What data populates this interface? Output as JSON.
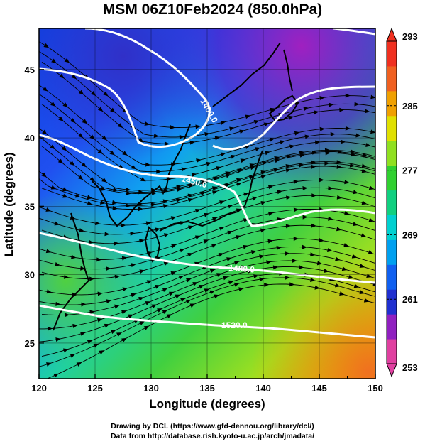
{
  "title": "MSM 06Z10Feb2024 (850.0hPa)",
  "axes": {
    "xlabel": "Longitude (degrees)",
    "ylabel": "Latitude  (degrees)",
    "xlim": [
      120,
      150
    ],
    "ylim": [
      22.4,
      48
    ],
    "xticks": [
      120,
      125,
      130,
      135,
      140,
      145,
      150
    ],
    "yticks": [
      25,
      30,
      35,
      40,
      45
    ]
  },
  "colorbar": {
    "min": 253,
    "max": 293,
    "labels": [
      293,
      285,
      277,
      269,
      261,
      253
    ],
    "colors": [
      "#e040a0",
      "#9020c0",
      "#2030d0",
      "#1060f0",
      "#00a0f0",
      "#00d0d0",
      "#10d080",
      "#30d030",
      "#90e020",
      "#e0e000",
      "#f0a000",
      "#f06020",
      "#f03020"
    ]
  },
  "contours": [
    {
      "label": "1400.0"
    },
    {
      "label": "1450.0"
    },
    {
      "label": "1480.0"
    },
    {
      "label": "1520.0"
    }
  ],
  "footer": {
    "line1": "Drawing by DCL (https://www.gfd-dennou.org/library/dcl/)",
    "line2": "Data from http://database.rish.kyoto-u.ac.jp/arch/jmadata/"
  }
}
